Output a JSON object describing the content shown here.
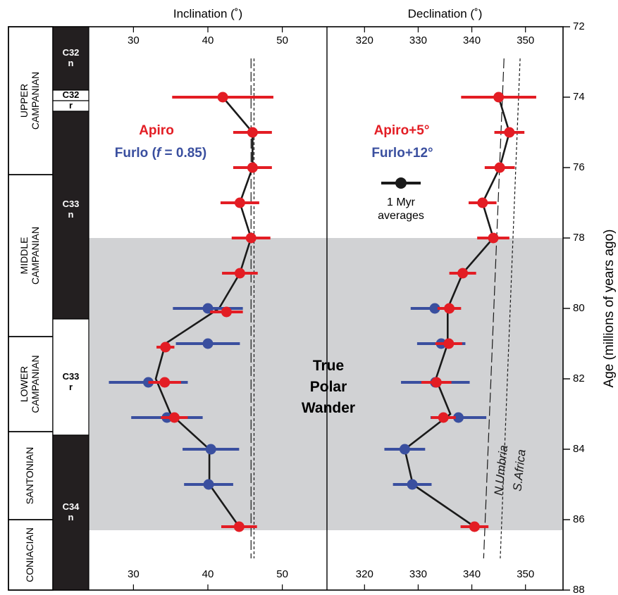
{
  "chart_data": {
    "type": "scatter",
    "y_axis": {
      "label": "Age (millions of years ago)",
      "range": [
        72,
        88
      ],
      "ticks": [
        "72",
        "74",
        "76",
        "78",
        "80",
        "82",
        "84",
        "86",
        "88"
      ]
    },
    "stages": [
      {
        "label_lines": [
          "UPPER",
          "CAMPANIAN"
        ],
        "from": 72,
        "to": 76.2
      },
      {
        "label_lines": [
          "MIDDLE",
          "CAMPANIAN"
        ],
        "from": 76.2,
        "to": 80.8
      },
      {
        "label_lines": [
          "LOWER",
          "CAMPANIAN"
        ],
        "from": 80.8,
        "to": 83.5
      },
      {
        "label_lines": [
          "SANTONIAN"
        ],
        "from": 83.5,
        "to": 86
      },
      {
        "label_lines": [
          "CONIACIAN"
        ],
        "from": 86,
        "to": 88
      }
    ],
    "chrons": [
      {
        "lines": [
          "C32",
          "n"
        ],
        "from": 72,
        "to": 73.8,
        "polarity": "normal",
        "label_at": 72.9
      },
      {
        "lines": [
          "C32"
        ],
        "from": 73.8,
        "to": 74.1,
        "polarity": "reversed",
        "label_at": 73.95
      },
      {
        "lines": [
          "r"
        ],
        "from": 74.1,
        "to": 74.4,
        "polarity": "reversed",
        "label_at": 74.25
      },
      {
        "lines": [
          "C33",
          "n"
        ],
        "from": 74.4,
        "to": 80.3,
        "polarity": "normal",
        "label_at": 77.2
      },
      {
        "lines": [
          "C33",
          "r"
        ],
        "from": 80.3,
        "to": 83.6,
        "polarity": "reversed",
        "label_at": 82.1
      },
      {
        "lines": [
          "C34",
          "n"
        ],
        "from": 83.6,
        "to": 88,
        "polarity": "normal",
        "label_at": 85.8
      }
    ],
    "shaded_interval": {
      "from": 78,
      "to": 86.3
    },
    "annotation": {
      "lines": [
        "True",
        "Polar",
        "Wander"
      ]
    },
    "panels": [
      {
        "title": "Inclination (˚)",
        "x_range": [
          24,
          56
        ],
        "ticks": [
          "30",
          "40",
          "50"
        ],
        "legend": [
          {
            "text": "Apiro",
            "color": "#e31d24"
          },
          {
            "text": "Furlo (",
            "italic": "f",
            "after": " = 0.85)",
            "color": "#3a4f9f"
          }
        ],
        "averages_line": [
          [
            42,
            74
          ],
          [
            46,
            75
          ],
          [
            46,
            76
          ],
          [
            44.3,
            77
          ],
          [
            45.8,
            78
          ],
          [
            44.3,
            79
          ],
          [
            41.5,
            80
          ],
          [
            34.3,
            81
          ],
          [
            33,
            82
          ],
          [
            35,
            83
          ],
          [
            40.2,
            84
          ],
          [
            40.2,
            85
          ],
          [
            44.2,
            86.2
          ]
        ],
        "apiro": [
          {
            "x": 42,
            "y": 74,
            "err": 6.8
          },
          {
            "x": 46,
            "y": 75,
            "err": 2.6
          },
          {
            "x": 46,
            "y": 76,
            "err": 2.6
          },
          {
            "x": 44.3,
            "y": 77,
            "err": 2.6
          },
          {
            "x": 45.8,
            "y": 78,
            "err": 2.6
          },
          {
            "x": 44.3,
            "y": 79,
            "err": 2.4
          },
          {
            "x": 42.5,
            "y": 80.1,
            "err": 2.2
          },
          {
            "x": 34.3,
            "y": 81.1,
            "err": 1.2
          },
          {
            "x": 34.2,
            "y": 82.1,
            "err": 2.2
          },
          {
            "x": 35.5,
            "y": 83.1,
            "err": 1.8
          },
          {
            "x": 44.2,
            "y": 86.2,
            "err": 2.4
          }
        ],
        "furlo": [
          {
            "x": 40,
            "y": 80,
            "err": 4.7
          },
          {
            "x": 40,
            "y": 81,
            "err": 4.3
          },
          {
            "x": 32,
            "y": 82.1,
            "err": 5.3
          },
          {
            "x": 34.5,
            "y": 83.1,
            "err": 4.8
          },
          {
            "x": 40.4,
            "y": 84,
            "err": 3.8
          },
          {
            "x": 40.1,
            "y": 85,
            "err": 3.3
          }
        ],
        "reference_lines": [
          {
            "name": "N.Umbria",
            "dash": "long",
            "x_top": 45.8,
            "x_bottom": 45.8
          },
          {
            "name": "S.Africa",
            "dash": "short",
            "x_top": 46.2,
            "x_bottom": 46.2
          }
        ]
      },
      {
        "title": "Declination (˚)",
        "x_range": [
          313,
          357
        ],
        "ticks": [
          "320",
          "330",
          "340",
          "350"
        ],
        "legend": [
          {
            "text": "Apiro+5°",
            "color": "#e31d24"
          },
          {
            "text": "Furlo+12°",
            "color": "#3a4f9f"
          }
        ],
        "avg_legend": {
          "lines": [
            "1 Myr",
            "averages"
          ]
        },
        "averages_line": [
          [
            345,
            74
          ],
          [
            347,
            75
          ],
          [
            345.2,
            76
          ],
          [
            342,
            77
          ],
          [
            344,
            78
          ],
          [
            338.3,
            79
          ],
          [
            335.5,
            80
          ],
          [
            335.5,
            81
          ],
          [
            333.3,
            82
          ],
          [
            336,
            83
          ],
          [
            327.5,
            84
          ],
          [
            329,
            85
          ],
          [
            340.5,
            86.2
          ]
        ],
        "apiro": [
          {
            "x": 345,
            "y": 74,
            "err": 7
          },
          {
            "x": 347,
            "y": 75,
            "err": 2.8
          },
          {
            "x": 345.2,
            "y": 76,
            "err": 2.8
          },
          {
            "x": 342,
            "y": 77,
            "err": 2.6
          },
          {
            "x": 344,
            "y": 78,
            "err": 3
          },
          {
            "x": 338.3,
            "y": 79,
            "err": 2.5
          },
          {
            "x": 335.8,
            "y": 80,
            "err": 2.2
          },
          {
            "x": 335.7,
            "y": 81,
            "err": 2.5
          },
          {
            "x": 333.4,
            "y": 82.1,
            "err": 2.8
          },
          {
            "x": 334.7,
            "y": 83.1,
            "err": 2.3
          },
          {
            "x": 340.5,
            "y": 86.2,
            "err": 2.6
          }
        ],
        "furlo": [
          {
            "x": 333.1,
            "y": 80,
            "err": 4.5
          },
          {
            "x": 334.3,
            "y": 81,
            "err": 4.5
          },
          {
            "x": 333.2,
            "y": 82.1,
            "err": 6.4
          },
          {
            "x": 337.5,
            "y": 83.1,
            "err": 5.2
          },
          {
            "x": 327.5,
            "y": 84,
            "err": 3.8
          },
          {
            "x": 328.9,
            "y": 85,
            "err": 3.6
          }
        ],
        "reference_lines": [
          {
            "name": "N.Umbria",
            "dash": "long",
            "x_top": 346,
            "x_bottom": 342.2
          },
          {
            "name": "S.Africa",
            "dash": "short",
            "x_top": 349,
            "x_bottom": 345.3
          }
        ]
      }
    ]
  },
  "colors": {
    "apiro": "#e31d24",
    "furlo": "#3a4f9f",
    "shade": "#d1d2d4",
    "line": "#1a1a1a"
  }
}
